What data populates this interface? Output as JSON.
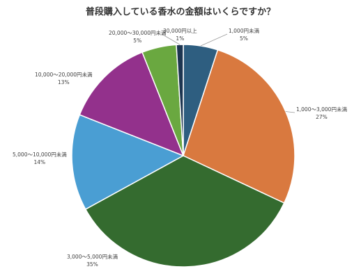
{
  "chart_data": {
    "type": "pie",
    "title": "普段購入している香水の金額はいくらですか？",
    "slices": [
      {
        "label": "1,000円未満",
        "value": 5,
        "percent_label": "5%",
        "color": "#2e5e80"
      },
      {
        "label": "1,000～3,000円未満",
        "value": 27,
        "percent_label": "27%",
        "color": "#d9793f"
      },
      {
        "label": "3,000～5,000円未満",
        "value": 35,
        "percent_label": "35%",
        "color": "#346b2f"
      },
      {
        "label": "5,000～10,000円未満",
        "value": 14,
        "percent_label": "14%",
        "color": "#4a9ed3"
      },
      {
        "label": "10,000～20,000円未満",
        "value": 13,
        "percent_label": "13%",
        "color": "#93318c"
      },
      {
        "label": "20,000～30,000円未満",
        "value": 5,
        "percent_label": "5%",
        "color": "#6aa840"
      },
      {
        "label": "30,000円以上",
        "value": 1,
        "percent_label": "1%",
        "color": "#1d3550"
      }
    ]
  }
}
